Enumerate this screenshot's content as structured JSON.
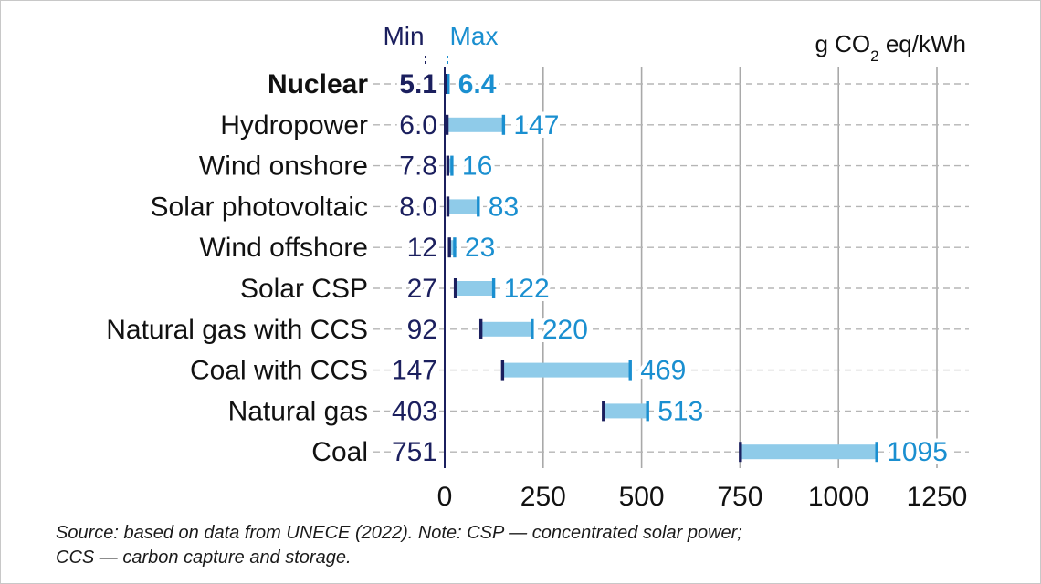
{
  "chart_data": {
    "type": "bar",
    "subtype": "range",
    "unit_label": "g CO2 eq/kWh",
    "legend": {
      "min_label": "Min",
      "max_label": "Max"
    },
    "categories": [
      "Nuclear",
      "Hydropower",
      "Wind onshore",
      "Solar photovoltaic",
      "Wind offshore",
      "Solar CSP",
      "Natural gas with CCS",
      "Coal with CCS",
      "Natural gas",
      "Coal"
    ],
    "highlight_category": "Nuclear",
    "min_values": [
      5.1,
      6.0,
      7.8,
      8.0,
      12,
      27,
      92,
      147,
      403,
      751
    ],
    "max_values": [
      6.4,
      147,
      16,
      83,
      23,
      122,
      220,
      469,
      513,
      1095
    ],
    "min_labels": [
      "5.1",
      "6.0",
      "7.8",
      "8.0",
      "12",
      "27",
      "92",
      "147",
      "403",
      "751"
    ],
    "max_labels": [
      "6.4",
      "147",
      "16",
      "83",
      "23",
      "122",
      "220",
      "469",
      "513",
      "1095"
    ],
    "x_ticks": [
      0,
      250,
      500,
      750,
      1000,
      1250
    ],
    "x_tick_labels": [
      "0",
      "250",
      "500",
      "750",
      "1000",
      "1250"
    ],
    "xlim": [
      0,
      1250
    ],
    "grid": "vertical",
    "colors": {
      "min": "#1b1f5e",
      "max": "#1a8fd0",
      "bar": "#8fcbe9",
      "grid": "#a9a9a9",
      "text": "#111111"
    }
  },
  "source": {
    "line1": "Source: based on data from UNECE (2022). Note: CSP — concentrated solar power;",
    "line2": "CCS — carbon capture and storage."
  }
}
